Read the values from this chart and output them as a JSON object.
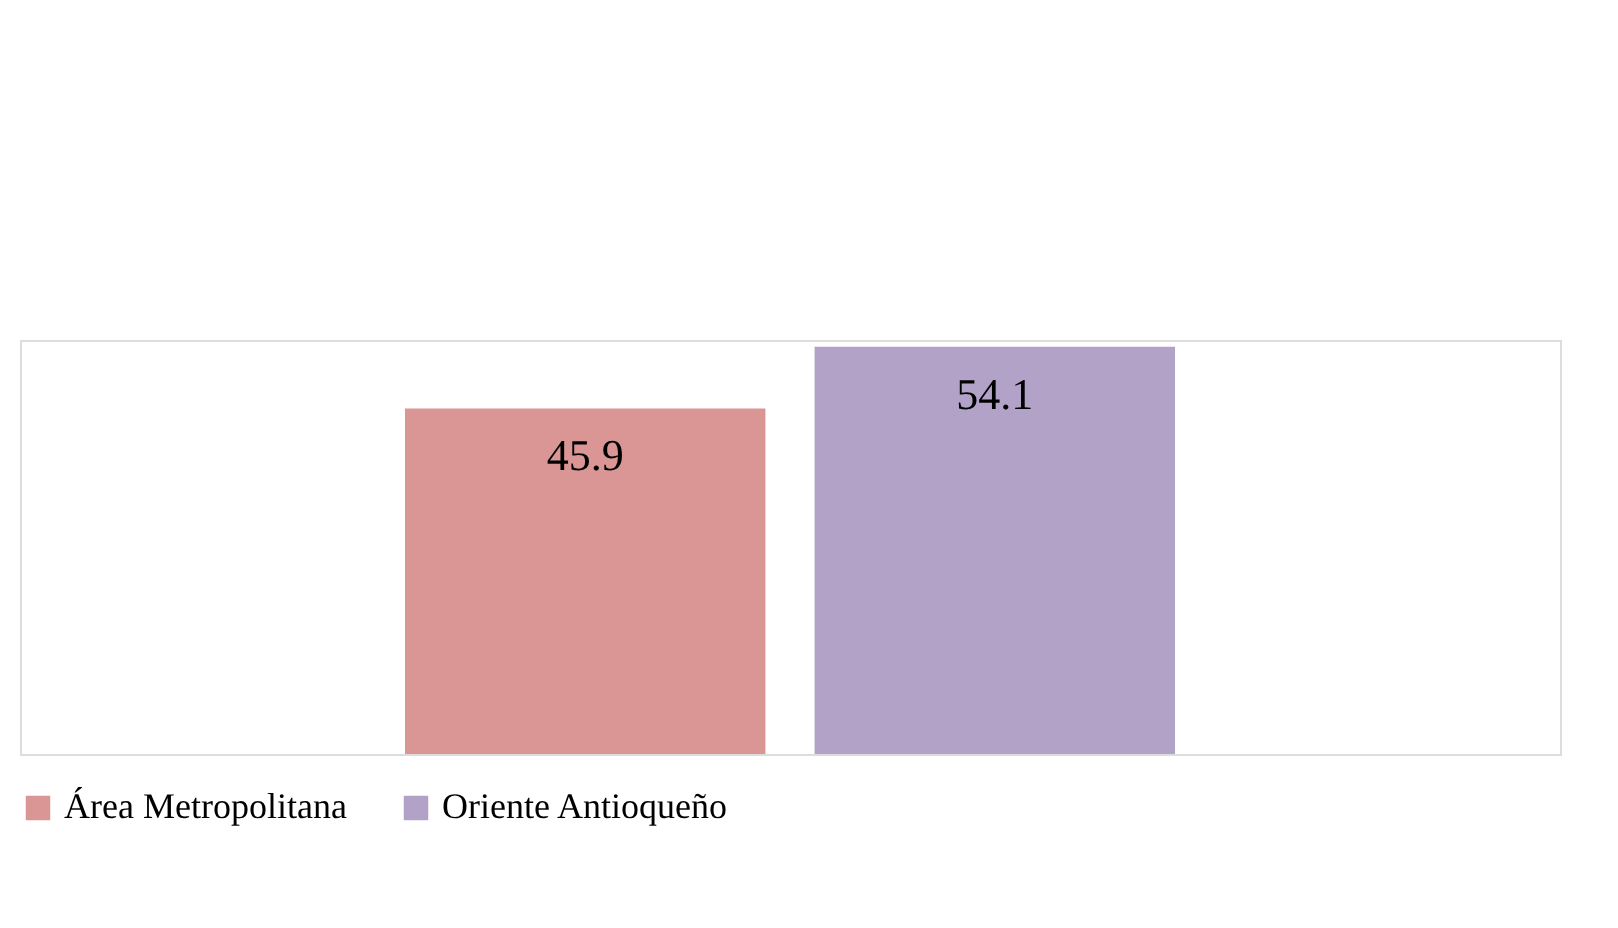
{
  "chart_data": {
    "type": "bar",
    "categories": [
      null
    ],
    "series": [
      {
        "name": "Área Metropolitana",
        "color": "#d99694",
        "values": [
          45.9
        ]
      },
      {
        "name": "Oriente Antioqueño",
        "color": "#b3a2c7",
        "values": [
          54.1
        ]
      }
    ],
    "data_labels": true,
    "legend": "bottom",
    "grid": false
  }
}
